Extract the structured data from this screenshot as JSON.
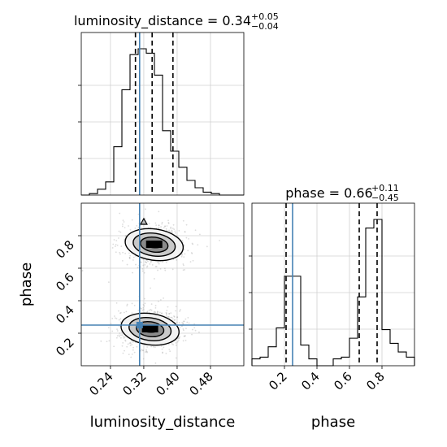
{
  "chart_data": {
    "type": "corner",
    "params": [
      "luminosity_distance",
      "phase"
    ],
    "truths": {
      "luminosity_distance": 0.31,
      "phase": 0.25
    },
    "panels": [
      {
        "id": "hist_luminosity_distance",
        "type": "histogram",
        "title": {
          "main": "luminosity_distance = 0.34",
          "sup": "+0.05",
          "sub": "−0.04"
        },
        "xlim": [
          0.17,
          0.56
        ],
        "bins": [
          0.17,
          0.1895,
          0.209,
          0.2285,
          0.248,
          0.2675,
          0.287,
          0.3065,
          0.326,
          0.3455,
          0.365,
          0.3845,
          0.404,
          0.4235,
          0.443,
          0.4625,
          0.482,
          0.5015,
          0.521,
          0.5405,
          0.56
        ],
        "counts": [
          0,
          0.01,
          0.04,
          0.09,
          0.33,
          0.72,
          0.96,
          1.0,
          0.97,
          0.82,
          0.44,
          0.3,
          0.19,
          0.1,
          0.05,
          0.02,
          0.01,
          0,
          0,
          0
        ],
        "quantiles": [
          0.3,
          0.34,
          0.39
        ],
        "truth": 0.31
      },
      {
        "id": "hist_phase",
        "type": "histogram",
        "title": {
          "main": "phase = 0.66",
          "sup": "+0.11",
          "sub": "−0.45"
        },
        "xlim": [
          0.0,
          1.0
        ],
        "xticks": [
          0.2,
          0.4,
          0.6,
          0.8
        ],
        "xlabel": "phase",
        "bins": [
          0.0,
          0.05,
          0.1,
          0.15,
          0.2,
          0.25,
          0.3,
          0.35,
          0.4,
          0.45,
          0.5,
          0.55,
          0.6,
          0.65,
          0.7,
          0.75,
          0.8,
          0.85,
          0.9,
          0.95,
          1.0
        ],
        "counts": [
          0.04,
          0.05,
          0.11,
          0.22,
          0.52,
          0.52,
          0.12,
          0.04,
          0.0,
          0.0,
          0.04,
          0.05,
          0.16,
          0.4,
          0.8,
          0.85,
          0.21,
          0.13,
          0.08,
          0.05
        ],
        "quantiles": [
          0.21,
          0.66,
          0.77
        ],
        "truth": 0.25
      },
      {
        "id": "joint_luminosity_distance_phase",
        "type": "2d-density",
        "xlim": [
          0.17,
          0.56
        ],
        "ylim": [
          0.0,
          1.0
        ],
        "xticks": [
          0.24,
          0.32,
          0.4,
          0.48
        ],
        "yticks": [
          0.2,
          0.4,
          0.6,
          0.8
        ],
        "xlabel": "luminosity_distance",
        "ylabel": "phase",
        "modes": [
          {
            "x": 0.345,
            "y": 0.745,
            "sx": 0.035,
            "sy": 0.06
          },
          {
            "x": 0.335,
            "y": 0.225,
            "sx": 0.035,
            "sy": 0.06
          }
        ],
        "truth": [
          0.31,
          0.25
        ]
      }
    ]
  }
}
